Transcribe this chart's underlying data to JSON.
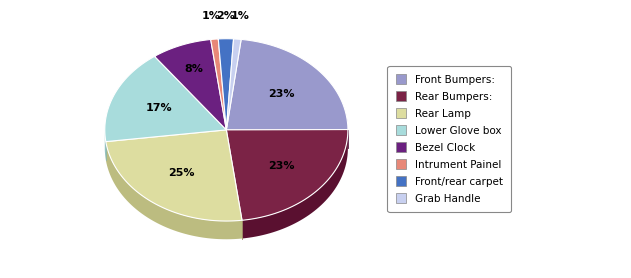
{
  "labels": [
    "Front Bumpers:",
    "Rear Bumpers:",
    "Rear Lamp",
    "Lower Glove box",
    "Bezel Clock",
    "Intrument Painel",
    "Front/rear carpet",
    "Grab Handle"
  ],
  "values": [
    23,
    23,
    25,
    17,
    8,
    1,
    2,
    1
  ],
  "colors": [
    "#9999CC",
    "#7B2346",
    "#DDDDA0",
    "#A8DCDC",
    "#6B2080",
    "#E88878",
    "#4472C4",
    "#C8D0F0"
  ],
  "shadow_colors": [
    "#7070AA",
    "#5A1030",
    "#BCBC80",
    "#80B8B8",
    "#4A0060",
    "#C06060",
    "#2050A0",
    "#A0A8D0"
  ],
  "pct_labels": [
    "23%",
    "23%",
    "25%",
    "17%",
    "8%",
    "1%",
    "2%",
    "1%"
  ],
  "legend_labels": [
    "Front Bumpers:",
    "Rear Bumpers:",
    "Rear Lamp",
    "Lower Glove box",
    "Bezel Clock",
    "Intrument Painel",
    "Front/rear carpet",
    "Grab Handle"
  ],
  "startangle": 83,
  "depth": 0.08
}
